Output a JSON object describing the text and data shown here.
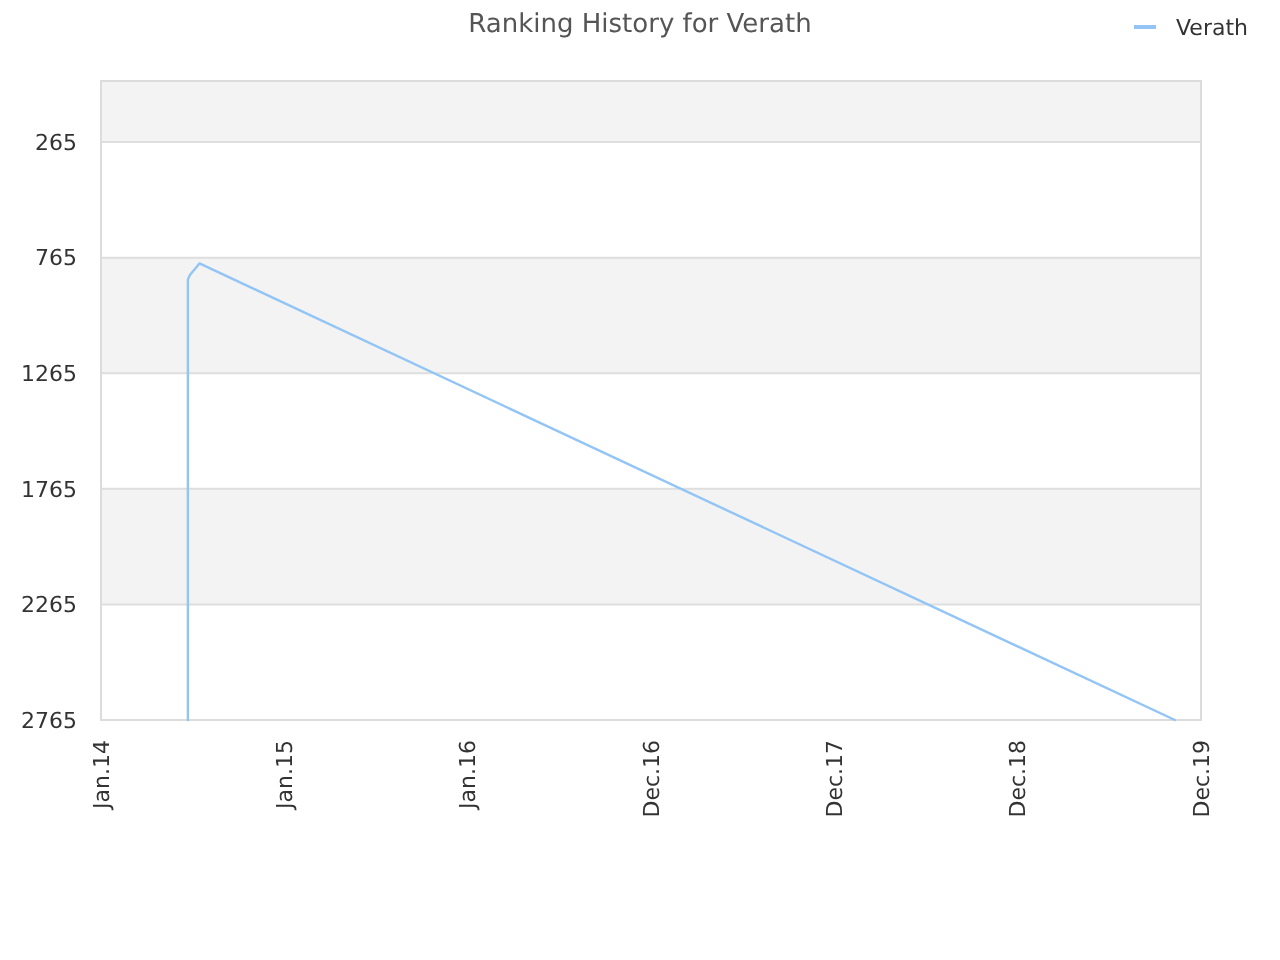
{
  "chart_data": {
    "type": "line",
    "title": "Ranking History for Verath",
    "x": [
      "2014-06-23",
      "2014-06-23",
      "2014-06-27",
      "2014-07-16",
      "2019-11-09"
    ],
    "series": [
      {
        "name": "Verath",
        "color": "#92c5f5",
        "values": [
          2765,
          860,
          840,
          790,
          2765
        ]
      }
    ],
    "xlim": [
      "2014-01-01",
      "2019-12-31"
    ],
    "xticks": [
      {
        "value": "2014-01-01",
        "label": "Jan.14"
      },
      {
        "value": "2015-01-01",
        "label": "Jan.15"
      },
      {
        "value": "2016-01-01",
        "label": "Jan.16"
      },
      {
        "value": "2016-12-31",
        "label": "Dec.16"
      },
      {
        "value": "2017-12-31",
        "label": "Dec.17"
      },
      {
        "value": "2018-12-31",
        "label": "Dec.18"
      },
      {
        "value": "2019-12-31",
        "label": "Dec.19"
      }
    ],
    "ylim": [
      2765,
      1
    ],
    "yticks": [
      265,
      765,
      1265,
      1765,
      2265,
      2765
    ],
    "grid": "y",
    "legend": "top right"
  }
}
